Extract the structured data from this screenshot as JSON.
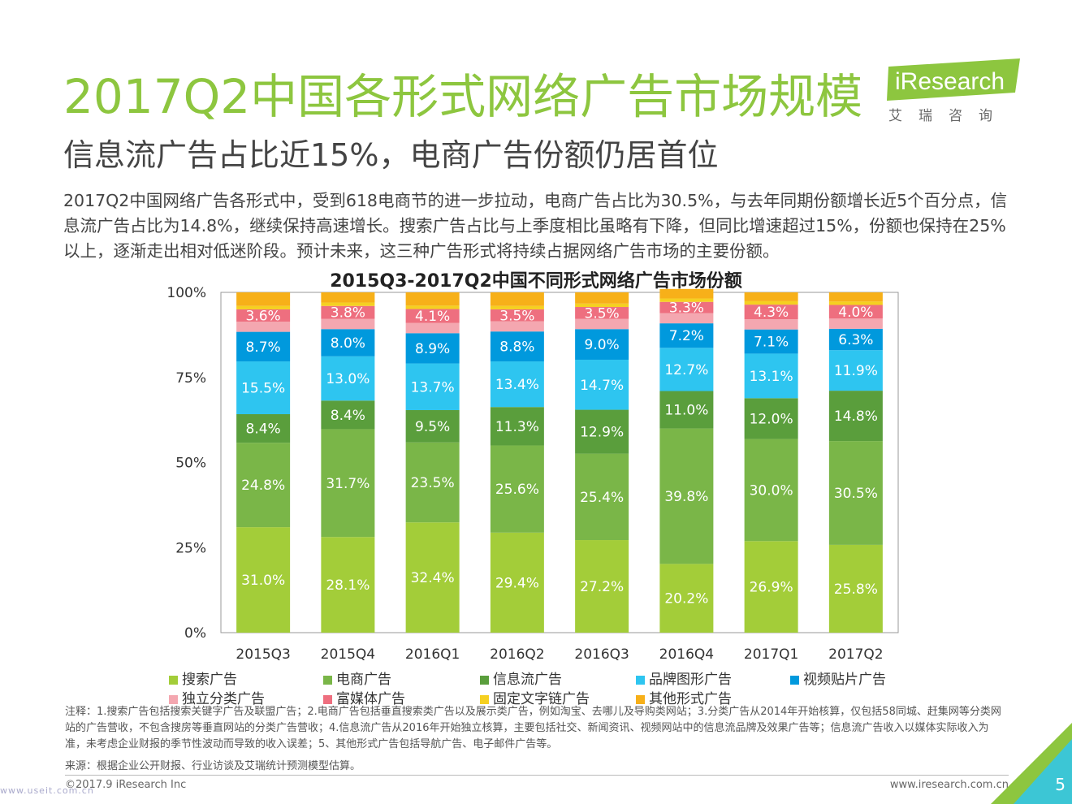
{
  "header": {
    "title": "2017Q2中国各形式网络广告市场规模",
    "subtitle": "信息流广告占比近15%，电商广告份额仍居首位",
    "intro": "2017Q2中国网络广告各形式中，受到618电商节的进一步拉动，电商广告占比为30.5%，与去年同期份额增长近5个百分点，信息流广告占比为14.8%，继续保持高速增长。搜索广告占比与上季度相比虽略有下降，但同比增速超过15%，份额也保持在25%以上，逐渐走出相对低迷阶段。预计未来，这三种广告形式将持续占据网络广告市场的主要份额。"
  },
  "logo": {
    "brand": "iResearch",
    "brand_cn": "艾瑞咨询"
  },
  "colors": {
    "brand_green": "#8dc63f",
    "search": "#a3cd39",
    "ecommerce": "#7ab648",
    "feed": "#5a9e3c",
    "brand_display": "#2ec5f0",
    "video": "#0099dd",
    "classified": "#f4a7b0",
    "rich_media": "#ee6f7f",
    "text_link": "#f5d021",
    "other": "#f7b019"
  },
  "chart_data": {
    "type": "bar",
    "stacked": true,
    "title": "2015Q3-2017Q2中国不同形式网络广告市场份额",
    "categories": [
      "2015Q3",
      "2015Q4",
      "2016Q1",
      "2016Q2",
      "2016Q3",
      "2016Q4",
      "2017Q1",
      "2017Q2"
    ],
    "y_ticks": [
      "0%",
      "25%",
      "50%",
      "75%",
      "100%"
    ],
    "ylim": [
      0,
      100
    ],
    "series": [
      {
        "name": "搜索广告",
        "color": "#a3cd39",
        "values": [
          31.0,
          28.1,
          32.4,
          29.4,
          27.2,
          20.2,
          26.9,
          25.8
        ]
      },
      {
        "name": "电商广告",
        "color": "#7ab648",
        "values": [
          24.8,
          31.7,
          23.5,
          25.6,
          25.4,
          39.8,
          30.0,
          30.5
        ]
      },
      {
        "name": "信息流广告",
        "color": "#5a9e3c",
        "values": [
          8.4,
          8.4,
          9.5,
          11.3,
          12.9,
          11.0,
          12.0,
          14.8
        ]
      },
      {
        "name": "品牌图形广告",
        "color": "#2ec5f0",
        "values": [
          15.5,
          13.0,
          13.7,
          13.4,
          14.7,
          12.7,
          13.1,
          11.9
        ]
      },
      {
        "name": "视频贴片广告",
        "color": "#0099dd",
        "values": [
          8.7,
          8.0,
          8.9,
          8.8,
          9.0,
          7.2,
          7.1,
          6.3
        ]
      },
      {
        "name": "独立分类广告",
        "color": "#f4a7b0",
        "values": [
          3.0,
          3.0,
          3.0,
          3.0,
          3.0,
          3.0,
          3.0,
          3.0
        ]
      },
      {
        "name": "富媒体广告",
        "color": "#ee6f7f",
        "values": [
          3.6,
          3.8,
          4.1,
          3.5,
          3.5,
          3.3,
          4.3,
          4.0
        ]
      },
      {
        "name": "固定文字链广告",
        "color": "#f5d021",
        "values": [
          1.0,
          1.0,
          1.0,
          1.0,
          1.0,
          1.0,
          1.0,
          1.0
        ]
      },
      {
        "name": "其他形式广告",
        "color": "#f7b019",
        "values": [
          4.0,
          3.0,
          3.9,
          4.0,
          3.3,
          2.8,
          2.6,
          2.7
        ]
      }
    ],
    "labels": [
      [
        "31.0%",
        "28.1%",
        "32.4%",
        "29.4%",
        "27.2%",
        "20.2%",
        "26.9%",
        "25.8%"
      ],
      [
        "24.8%",
        "31.7%",
        "23.5%",
        "25.6%",
        "25.4%",
        "39.8%",
        "30.0%",
        "30.5%"
      ],
      [
        "8.4%",
        "8.4%",
        "9.5%",
        "11.3%",
        "12.9%",
        "11.0%",
        "12.0%",
        "14.8%"
      ],
      [
        "15.5%",
        "13.0%",
        "13.7%",
        "13.4%",
        "14.7%",
        "12.7%",
        "13.1%",
        "11.9%"
      ],
      [
        "8.7%",
        "8.0%",
        "8.9%",
        "8.8%",
        "9.0%",
        "7.2%",
        "7.1%",
        "6.3%"
      ],
      null,
      [
        "3.6%",
        "3.8%",
        "4.1%",
        "3.5%",
        "3.5%",
        "3.3%",
        "4.3%",
        "4.0%"
      ],
      null,
      null
    ]
  },
  "legend": [
    "搜索广告",
    "电商广告",
    "信息流广告",
    "品牌图形广告",
    "视频贴片广告",
    "独立分类广告",
    "富媒体广告",
    "固定文字链广告",
    "其他形式广告"
  ],
  "notes": "注释：1.搜索广告包括搜索关键字广告及联盟广告；2.电商广告包括垂直搜索类广告以及展示类广告，例如淘宝、去哪儿及导购类网站；3.分类广告从2014年开始核算，仅包括58同城、赶集网等分类网站的广告营收，不包含搜房等垂直网站的分类广告营收；4.信息流广告从2016年开始独立核算，主要包括社交、新闻资讯、视频网站中的信息流品牌及效果广告等；信息流广告收入以媒体实际收入为准，未考虑企业财报的季节性波动而导致的收入误差；5、其他形式广告包括导航广告、电子邮件广告等。",
  "source": "来源：根据企业公开财报、行业访谈及艾瑞统计预测模型估算。",
  "footer": {
    "copyright": "©2017.9 iResearch Inc",
    "website": "www.iresearch.com.cn",
    "page": "5",
    "watermark": "www.useit.com.cn"
  }
}
